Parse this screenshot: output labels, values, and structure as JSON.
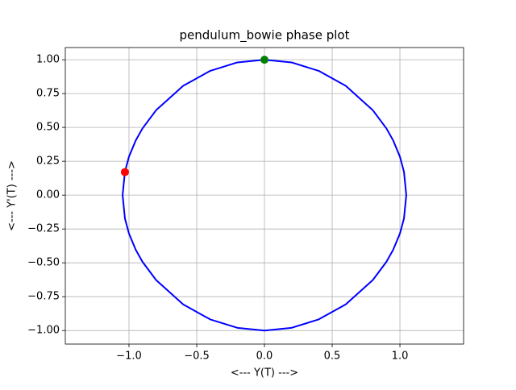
{
  "chart_data": {
    "type": "line",
    "title": "pendulum_bowie phase plot",
    "xlabel": "<--- Y(T) --->",
    "ylabel": "<--- Y'(T) --->",
    "series": [
      {
        "color": "#0000ff",
        "x": [
          0,
          0.2,
          0.4,
          0.6,
          0.8,
          0.9,
          0.95,
          1.0,
          1.03,
          1.047,
          1.03,
          1.0,
          0.95,
          0.9,
          0.8,
          0.6,
          0.4,
          0.2,
          0,
          -0.2,
          -0.4,
          -0.6,
          -0.8,
          -0.9,
          -0.95,
          -1.0,
          -1.03,
          -1.047,
          -1.03,
          -1.0,
          -0.95,
          -0.9,
          -0.8,
          -0.6,
          -0.4,
          -0.2,
          0
        ],
        "y": [
          1,
          0.98,
          0.918,
          0.807,
          0.627,
          0.493,
          0.404,
          0.284,
          0.172,
          0,
          -0.172,
          -0.284,
          -0.404,
          -0.493,
          -0.627,
          -0.807,
          -0.918,
          -0.98,
          -1,
          -0.98,
          -0.918,
          -0.807,
          -0.627,
          -0.493,
          -0.404,
          -0.284,
          -0.172,
          0,
          0.172,
          0.284,
          0.404,
          0.493,
          0.627,
          0.807,
          0.918,
          0.98,
          1
        ]
      }
    ],
    "markers": [
      {
        "x": 0,
        "y": 1,
        "color": "#008000"
      },
      {
        "x": -1.03,
        "y": 0.17,
        "color": "#ff0000"
      }
    ],
    "xlim": [
      -1.47,
      1.47
    ],
    "ylim": [
      -1.1,
      1.09
    ],
    "xticks": [
      {
        "value": -1,
        "label": "−1.0"
      },
      {
        "value": -0.5,
        "label": "−0.5"
      },
      {
        "value": 0,
        "label": "0.0"
      },
      {
        "value": 0.5,
        "label": "0.5"
      },
      {
        "value": 1,
        "label": "1.0"
      }
    ],
    "yticks": [
      {
        "value": -1,
        "label": "−1.00"
      },
      {
        "value": -0.75,
        "label": "−0.75"
      },
      {
        "value": -0.5,
        "label": "−0.50"
      },
      {
        "value": -0.25,
        "label": "−0.25"
      },
      {
        "value": 0,
        "label": "0.00"
      },
      {
        "value": 0.25,
        "label": "0.25"
      },
      {
        "value": 0.5,
        "label": "0.50"
      },
      {
        "value": 0.75,
        "label": "0.75"
      },
      {
        "value": 1,
        "label": "1.00"
      }
    ],
    "grid": true
  }
}
